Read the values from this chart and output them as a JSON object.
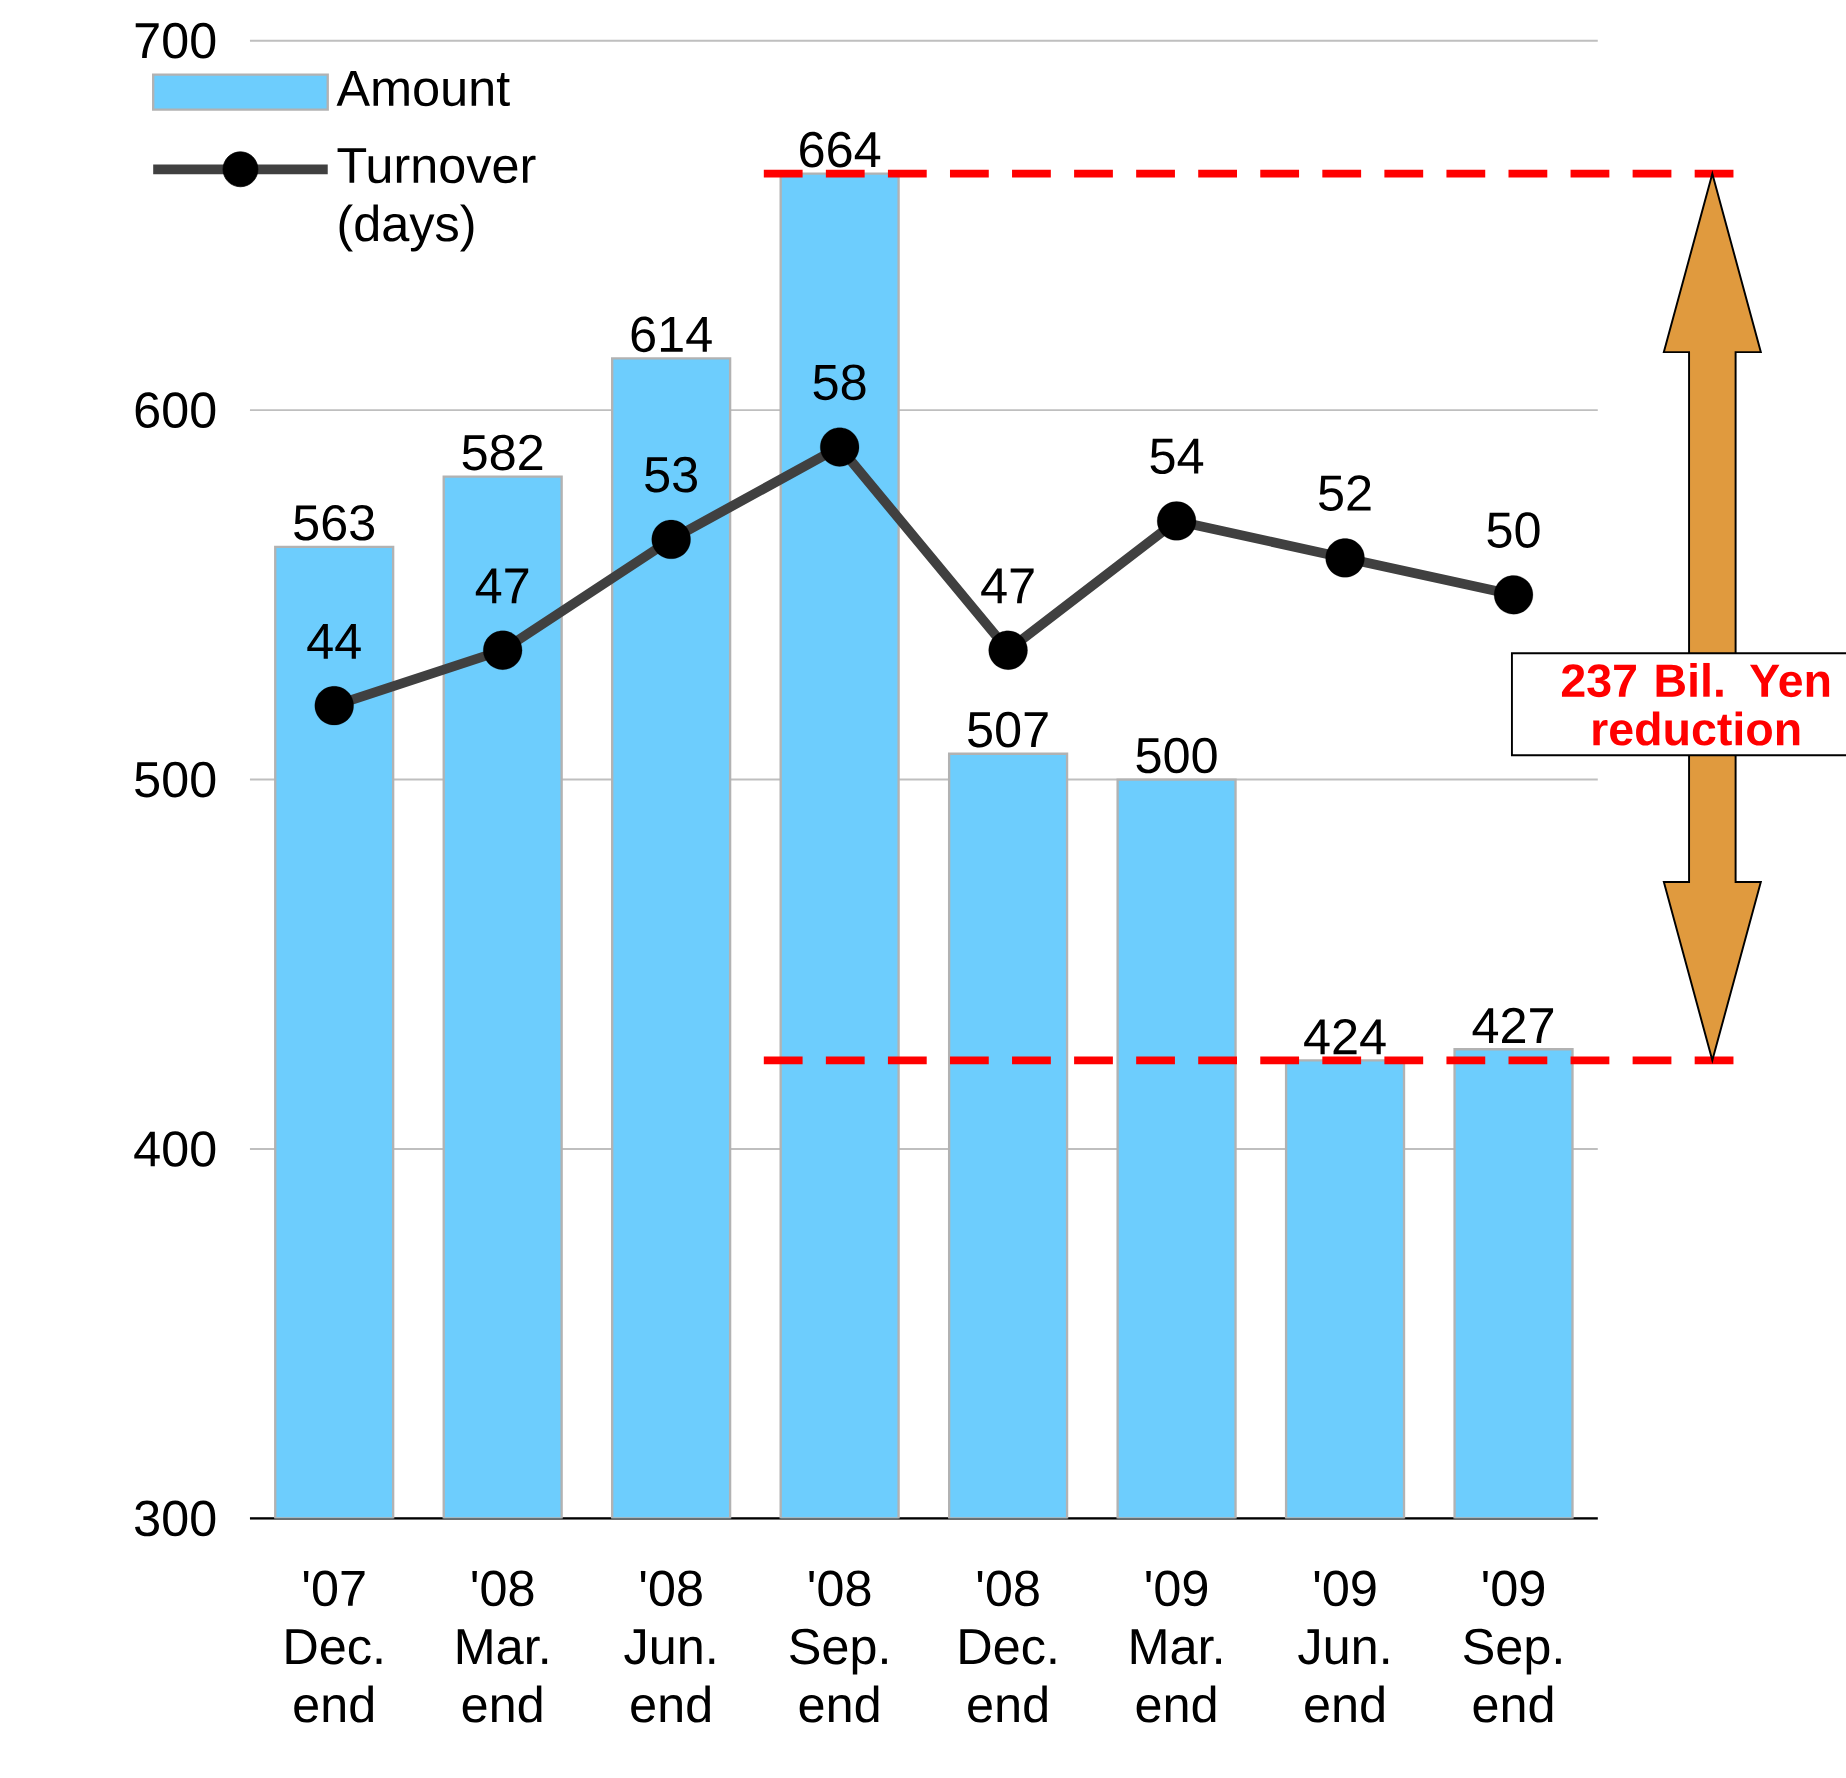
{
  "chart_data": {
    "type": "bar",
    "categories": [
      "'07 Dec. end",
      "'08 Mar. end",
      "'08 Jun. end",
      "'08 Sep. end",
      "'08 Dec. end",
      "'09 Mar. end",
      "'09 Jun. end",
      "'09 Sep. end"
    ],
    "series": [
      {
        "name": "Amount",
        "color": "#6dcdfd",
        "values": [
          563,
          582,
          614,
          664,
          507,
          500,
          424,
          427
        ]
      },
      {
        "name": "Turnover (days)",
        "type": "line",
        "axis": "y2",
        "color": "#404040",
        "marker": "circle",
        "values": [
          44,
          47,
          53,
          58,
          47,
          54,
          52,
          50
        ]
      }
    ],
    "ylim": [
      300,
      700
    ],
    "yticks": [
      300,
      400,
      500,
      600,
      700
    ],
    "y2lim": [
      0,
      80
    ],
    "grid": "y",
    "legend": "top left",
    "data_labels": true,
    "ref_lines": [
      {
        "axis": "y",
        "value": 664,
        "color": "#ff0000",
        "line_style": "dashed"
      },
      {
        "axis": "y",
        "value": 424,
        "color": "#ff0000",
        "line_style": "dashed"
      }
    ],
    "annotations": [
      "237 Bil. Yen reduction"
    ]
  }
}
